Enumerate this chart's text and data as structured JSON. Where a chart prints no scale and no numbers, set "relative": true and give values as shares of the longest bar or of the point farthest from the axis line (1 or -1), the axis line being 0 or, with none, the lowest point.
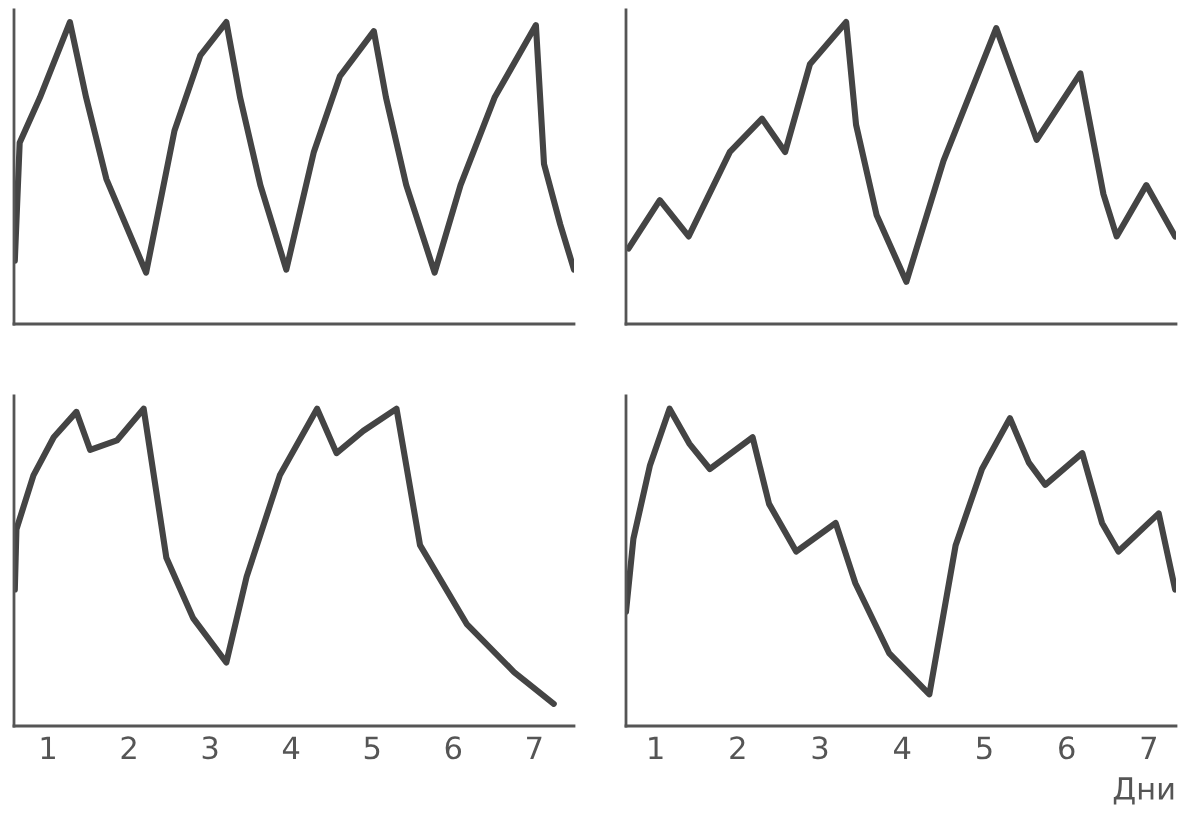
{
  "chart_data": [
    {
      "type": "line",
      "relative": true,
      "x": [
        0.59,
        0.65,
        0.9,
        1.27,
        1.47,
        1.72,
        2.21,
        2.56,
        2.88,
        3.2,
        3.37,
        3.62,
        3.94,
        4.28,
        4.6,
        5.02,
        5.17,
        5.42,
        5.77,
        6.09,
        6.51,
        7.02,
        7.12,
        7.32,
        7.49
      ],
      "xlim": [
        0.58,
        7.49
      ],
      "xticks": [
        1,
        2,
        3,
        4,
        5,
        6,
        7
      ],
      "tick_labels": false,
      "grid": false,
      "legend": false,
      "series": [
        {
          "color": "#444444",
          "values": [
            0.21,
            0.6,
            0.75,
            1.0,
            0.75,
            0.48,
            0.17,
            0.64,
            0.89,
            1.0,
            0.75,
            0.46,
            0.18,
            0.57,
            0.82,
            0.97,
            0.75,
            0.46,
            0.17,
            0.46,
            0.75,
            0.99,
            0.53,
            0.33,
            0.18
          ]
        }
      ]
    },
    {
      "type": "line",
      "relative": true,
      "x": [
        0.67,
        1.05,
        1.4,
        1.9,
        2.29,
        2.57,
        2.87,
        3.31,
        3.43,
        3.68,
        4.04,
        4.49,
        5.13,
        5.62,
        6.15,
        6.43,
        6.59,
        6.95,
        7.3
      ],
      "xlim": [
        0.64,
        7.31
      ],
      "xticks": [
        1,
        2,
        3,
        4,
        5,
        6,
        7
      ],
      "tick_labels": false,
      "grid": false,
      "legend": false,
      "series": [
        {
          "color": "#444444",
          "values": [
            0.25,
            0.41,
            0.29,
            0.57,
            0.68,
            0.57,
            0.86,
            1.0,
            0.66,
            0.36,
            0.14,
            0.54,
            0.98,
            0.61,
            0.83,
            0.43,
            0.29,
            0.46,
            0.29
          ]
        }
      ]
    },
    {
      "type": "line",
      "relative": true,
      "x": [
        0.59,
        0.61,
        0.82,
        1.07,
        1.35,
        1.52,
        1.85,
        2.18,
        2.46,
        2.79,
        3.2,
        3.45,
        3.86,
        4.32,
        4.56,
        4.89,
        5.3,
        5.59,
        6.17,
        6.75,
        7.24
      ],
      "xlim": [
        0.58,
        7.49
      ],
      "xticks": [
        1,
        2,
        3,
        4,
        5,
        6,
        7
      ],
      "tick_labels": "x",
      "grid": false,
      "legend": false,
      "series": [
        {
          "color": "#444444",
          "values": [
            0.43,
            0.62,
            0.79,
            0.91,
            0.99,
            0.87,
            0.9,
            1.0,
            0.53,
            0.34,
            0.2,
            0.47,
            0.79,
            1.0,
            0.86,
            0.93,
            1.0,
            0.57,
            0.32,
            0.17,
            0.07
          ]
        }
      ]
    },
    {
      "type": "line",
      "relative": true,
      "xlabel": "Дни",
      "x": [
        0.64,
        0.73,
        0.93,
        1.17,
        1.41,
        1.66,
        2.18,
        2.38,
        2.71,
        3.19,
        3.43,
        3.84,
        4.33,
        4.65,
        4.97,
        5.31,
        5.54,
        5.74,
        6.19,
        6.43,
        6.63,
        7.12,
        7.32
      ],
      "xlim": [
        0.64,
        7.33
      ],
      "xticks": [
        1,
        2,
        3,
        4,
        5,
        6,
        7
      ],
      "tick_labels": "x",
      "grid": false,
      "legend": false,
      "series": [
        {
          "color": "#444444",
          "values": [
            0.36,
            0.59,
            0.82,
            1.0,
            0.89,
            0.81,
            0.91,
            0.7,
            0.55,
            0.64,
            0.45,
            0.23,
            0.1,
            0.57,
            0.81,
            0.97,
            0.83,
            0.76,
            0.86,
            0.64,
            0.55,
            0.67,
            0.43
          ]
        }
      ]
    }
  ]
}
